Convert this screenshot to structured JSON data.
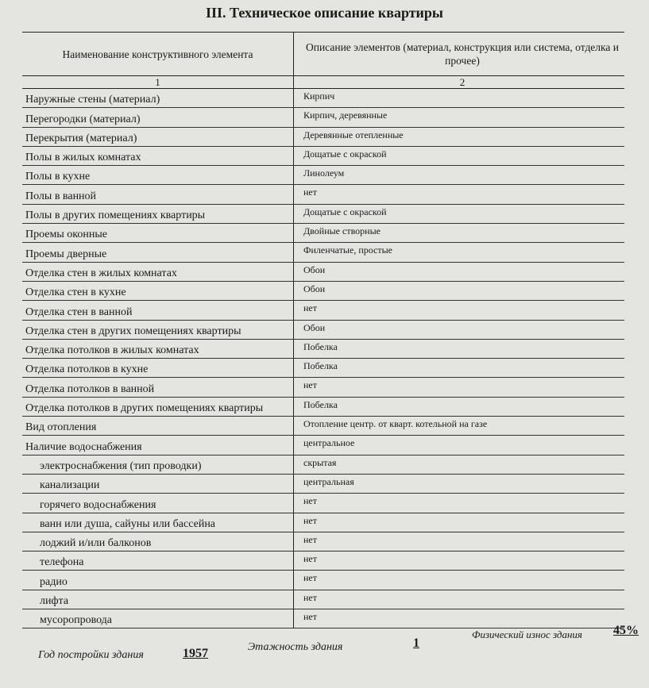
{
  "header": {
    "title": "III. Техническое описание квартиры"
  },
  "table": {
    "columns": [
      "Наименование конструктивного элемента",
      "Описание элементов (материал, конструкция или система, отделка и прочее)"
    ],
    "column_numbers": [
      "1",
      "2"
    ],
    "rows": [
      [
        "Наружные стены (материал)",
        "Кирпич"
      ],
      [
        "Перегородки (материал)",
        "Кирпич, деревянные"
      ],
      [
        "Перекрытия (материал)",
        "Деревянные отепленные"
      ],
      [
        "Полы в жилых комнатах",
        "Дощатые с окраской"
      ],
      [
        "Полы в кухне",
        "Линолеум"
      ],
      [
        "Полы в ванной",
        "нет"
      ],
      [
        "Полы в других помещениях квартиры",
        "Дощатые с окраской"
      ],
      [
        "Проемы оконные",
        "Двойные створные"
      ],
      [
        "Проемы дверные",
        "Филенчатые, простые"
      ],
      [
        "Отделка стен в жилых комнатах",
        "Обои"
      ],
      [
        "Отделка стен в кухне",
        "Обои"
      ],
      [
        "Отделка стен в ванной",
        "нет"
      ],
      [
        "Отделка стен в других помещениях квартиры",
        "Обои"
      ],
      [
        "Отделка потолков в жилых комнатах",
        "Побелка"
      ],
      [
        "Отделка потолков в кухне",
        "Побелка"
      ],
      [
        "Отделка потолков в ванной",
        "нет"
      ],
      [
        "Отделка потолков в других помещениях квартиры",
        "Побелка"
      ],
      [
        "Вид отопления",
        "Отопление центр. от кварт. котельной на газе"
      ],
      [
        "Наличие водоснабжения",
        "центральное"
      ],
      [
        "электроснабжения (тип проводки)",
        "скрытая"
      ],
      [
        "канализации",
        "центральная"
      ],
      [
        "горячего водоснабжения",
        "нет"
      ],
      [
        "ванн или душа, сайуны или бассейна",
        "нет"
      ],
      [
        "лоджий и/или балконов",
        "нет"
      ],
      [
        "телефона",
        "нет"
      ],
      [
        "радио",
        "нет"
      ],
      [
        "лифта",
        "нет"
      ],
      [
        "мусоропровода",
        "нет"
      ]
    ]
  },
  "footer": {
    "year_label": "Год постройки здания",
    "year": "1957",
    "floors_label": "Этажность здания",
    "floors": "1",
    "wear_label": "Физический износ здания",
    "wear": "45%"
  }
}
